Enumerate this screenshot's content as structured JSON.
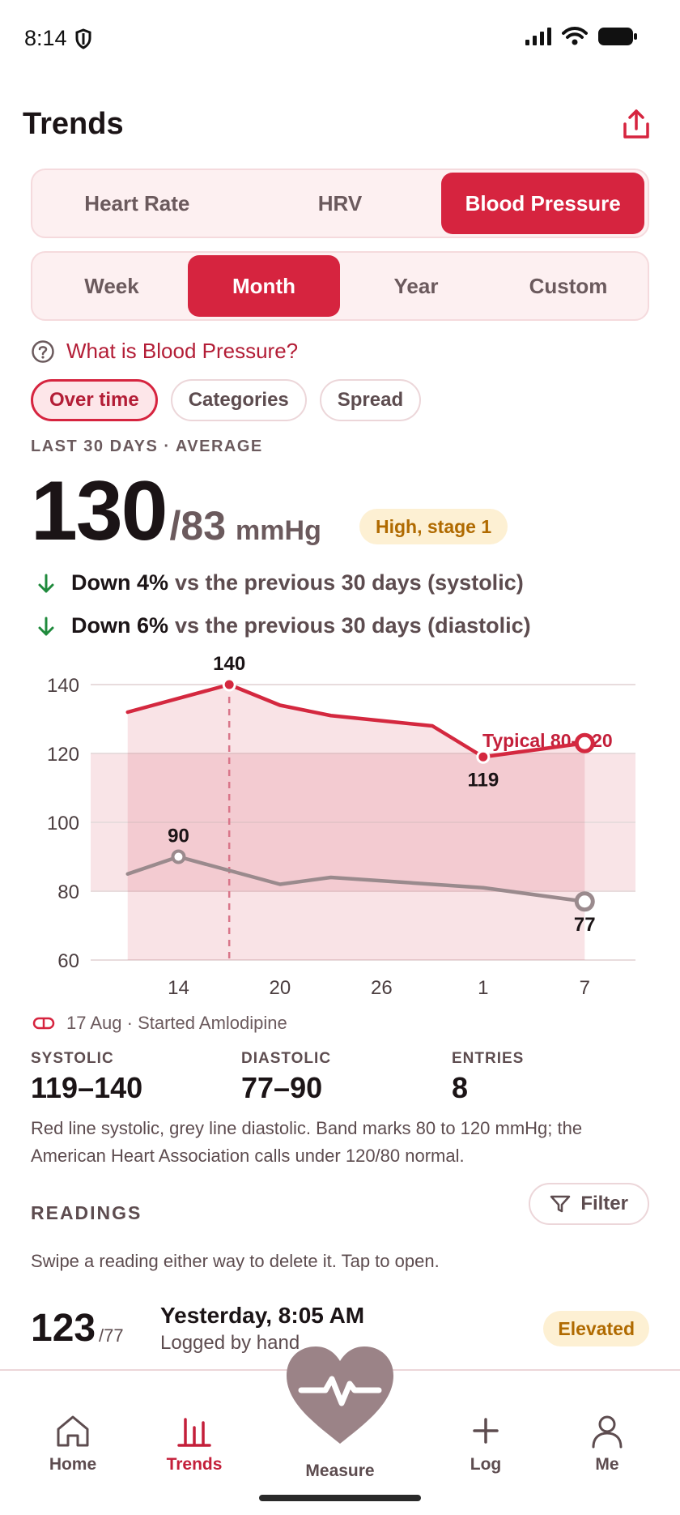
{
  "status": {
    "time": "8:14"
  },
  "header": {
    "title": "Trends"
  },
  "metric_tabs": [
    "Heart Rate",
    "HRV",
    "Blood Pressure"
  ],
  "metric_active": "Blood Pressure",
  "range_tabs": [
    "Week",
    "Month",
    "Year",
    "Custom"
  ],
  "range_active": "Month",
  "info_link": "What is Blood Pressure?",
  "view_chips": [
    "Over time",
    "Categories",
    "Spread"
  ],
  "view_active": "Over time",
  "summary": {
    "period_label": "LAST 30 DAYS · AVERAGE",
    "systolic": "130",
    "diastolic": "/83",
    "unit": "mmHg",
    "category": "High, stage 1",
    "trend_systolic_strong": "Down 4%",
    "trend_systolic_rest": "vs the previous 30 days (systolic)",
    "trend_diastolic_strong": "Down 6%",
    "trend_diastolic_rest": "vs the previous 30 days (diastolic)"
  },
  "colors": {
    "accent": "#d6243f",
    "systolic_line": "#d4283f",
    "diastolic_line": "#9a8a8d",
    "band": "#f4cdd3",
    "badge_bg": "#fdf0d3",
    "badge_text": "#b06a00"
  },
  "chart_data": {
    "type": "line",
    "x_ticks": [
      "14",
      "20",
      "26",
      "1",
      "7"
    ],
    "y_ticks": [
      "60",
      "80",
      "100",
      "120",
      "140"
    ],
    "ylim": [
      60,
      140
    ],
    "grid": true,
    "band": {
      "low": 80,
      "high": 120,
      "label": "Typical 80–120"
    },
    "series": [
      {
        "x": [
          11,
          17,
          20,
          23,
          29,
          32,
          38
        ],
        "values": [
          132,
          140,
          134,
          131,
          128,
          119,
          123
        ],
        "peak_label": "140",
        "low_label": "119"
      },
      {
        "x": [
          11,
          14,
          20,
          23,
          32,
          38
        ],
        "values": [
          85,
          90,
          82,
          84,
          81,
          77
        ],
        "peak_label": "90",
        "last_label": "77"
      }
    ],
    "x_tick_positions": [
      14,
      20,
      26,
      32,
      38
    ],
    "marker_x": 17
  },
  "event": "17 Aug · Started Amlodipine",
  "stats": {
    "systolic_label": "SYSTOLIC",
    "systolic_value": "119–140",
    "diastolic_label": "DIASTOLIC",
    "diastolic_value": "77–90",
    "entries_label": "ENTRIES",
    "entries_value": "8"
  },
  "explanation": "Red line systolic, grey line diastolic. Band marks 80 to 120 mmHg; the American Heart Association calls under 120/80 normal.",
  "readings": {
    "title": "READINGS",
    "filter_label": "Filter",
    "hint": "Swipe a reading either way to delete it. Tap to open.",
    "items": [
      {
        "systolic": "123",
        "diastolic": "/77",
        "time": "Yesterday, 8:05 AM",
        "source": "Logged by hand",
        "category": "Elevated"
      }
    ]
  },
  "tabbar": {
    "home": "Home",
    "trends": "Trends",
    "measure": "Measure",
    "log": "Log",
    "me": "Me",
    "active": "Trends"
  }
}
